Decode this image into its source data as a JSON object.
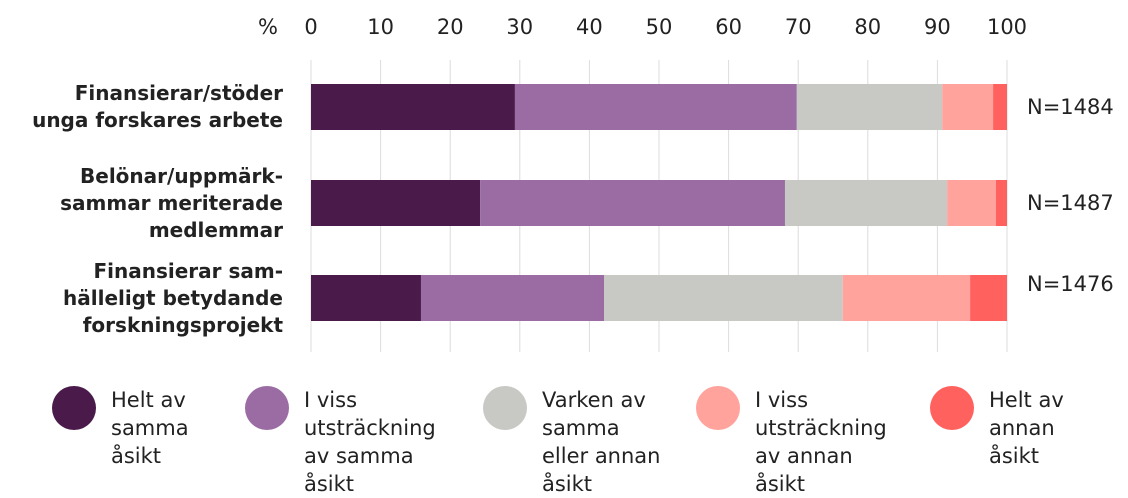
{
  "chart_data": {
    "type": "stacked_bar_horizontal",
    "axis_label": "%",
    "categories": [
      "Finansierar/stöder\nunga forskares arbete",
      "Belönar/uppmärk-\nsammar meriterade\nmedlemmar",
      "Finansierar sam-\nhälleligt betydande\nforskningsprojekt"
    ],
    "annotations": [
      "N=1484",
      "N=1487",
      "N=1476"
    ],
    "series": [
      {
        "name": "Helt av\nsamma\nåsikt",
        "color": "#4a1a4a",
        "values": [
          29.3,
          24.3,
          15.8
        ]
      },
      {
        "name": "I viss\nutsträckning\nav samma\nåsikt",
        "color": "#9b6ba3",
        "values": [
          40.5,
          43.8,
          26.3
        ]
      },
      {
        "name": "Varken av\nsamma\neller annan\nåsikt",
        "color": "#c8c8c4",
        "values": [
          20.9,
          23.3,
          34.3
        ]
      },
      {
        "name": "I viss\nutsträckning\nav annan\nåsikt",
        "color": "#ffa39c",
        "values": [
          7.3,
          7.0,
          18.3
        ]
      },
      {
        "name": "Helt av\nannan\nåsikt",
        "color": "#ff615e",
        "values": [
          2.0,
          1.6,
          5.3
        ]
      }
    ],
    "xlim": [
      0,
      100
    ],
    "xticks": [
      0,
      10,
      20,
      30,
      40,
      50,
      60,
      70,
      80,
      90,
      100
    ],
    "grid": true
  }
}
